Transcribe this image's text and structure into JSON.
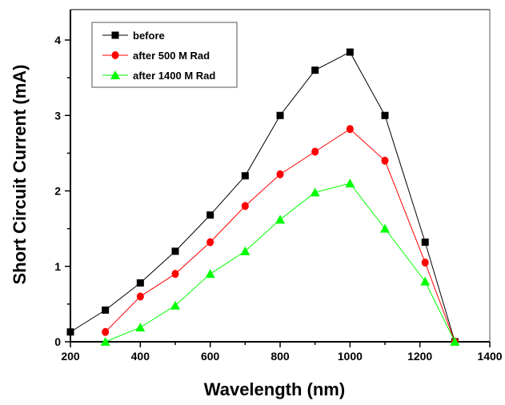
{
  "chart_data": {
    "type": "line",
    "title": "",
    "xlabel": "Wavelength (nm)",
    "ylabel": "Short Circuit Current  (mA)",
    "xlim": [
      200,
      1400
    ],
    "ylim": [
      0,
      4.4
    ],
    "xticks": [
      200,
      400,
      600,
      800,
      1000,
      1200,
      1400
    ],
    "yticks": [
      0,
      1,
      2,
      3,
      4
    ],
    "grid": false,
    "legend_position": "top-left",
    "series": [
      {
        "name": "before",
        "color": "#000000",
        "marker": "square",
        "x": [
          200,
          300,
          400,
          500,
          600,
          700,
          800,
          900,
          1000,
          1100,
          1215,
          1300
        ],
        "y": [
          0.13,
          0.42,
          0.78,
          1.2,
          1.68,
          2.2,
          3.0,
          3.6,
          3.84,
          3.0,
          1.32,
          0
        ]
      },
      {
        "name": "after 500 M Rad",
        "color": "#ff0000",
        "marker": "circle",
        "x": [
          300,
          400,
          500,
          600,
          700,
          800,
          900,
          1000,
          1100,
          1215,
          1300
        ],
        "y": [
          0.13,
          0.6,
          0.9,
          1.32,
          1.8,
          2.22,
          2.52,
          2.82,
          2.4,
          1.05,
          0
        ]
      },
      {
        "name": "after 1400 M Rad",
        "color": "#00ff00",
        "marker": "triangle",
        "x": [
          300,
          400,
          500,
          600,
          700,
          800,
          900,
          1000,
          1100,
          1215,
          1300
        ],
        "y": [
          0,
          0.19,
          0.48,
          0.9,
          1.2,
          1.62,
          1.98,
          2.1,
          1.5,
          0.8,
          0
        ]
      }
    ]
  }
}
